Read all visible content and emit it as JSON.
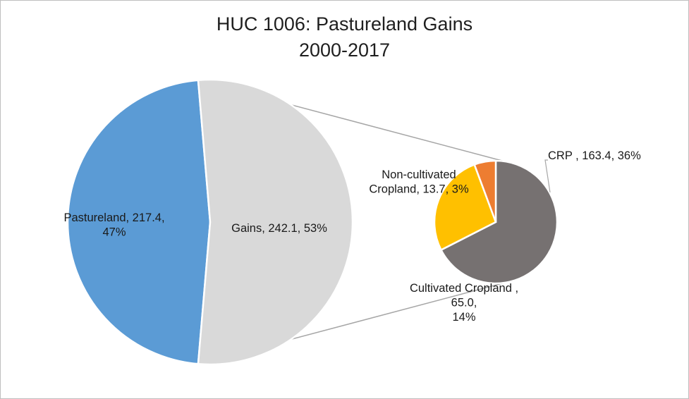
{
  "chart_data": {
    "type": "pie",
    "subtype": "pie-of-pie",
    "title_line1": "HUC 1006: Pastureland Gains",
    "title_line2": "2000-2017",
    "main_pie": {
      "slices": [
        {
          "name": "Pastureland",
          "value": 217.4,
          "percent": "47%",
          "color": "#5b9bd5",
          "label_line1": "Pastureland, 217.4,",
          "label_line2": "47%"
        },
        {
          "name": "Gains",
          "value": 242.1,
          "percent": "53%",
          "color": "#d9d9d9",
          "label_line1": "Gains, 242.1, 53%"
        }
      ]
    },
    "secondary_pie": {
      "slices": [
        {
          "name": "CRP",
          "value": 163.4,
          "percent": "36%",
          "color": "#767171",
          "label_line1": "CRP , 163.4, 36%"
        },
        {
          "name": "Cultivated Cropland",
          "value": 65.0,
          "percent": "14%",
          "color": "#ffc000",
          "label_line1": "Cultivated Cropland ,",
          "label_line2": "65.0,",
          "label_line3": "14%"
        },
        {
          "name": "Non-cultivated Cropland",
          "value": 13.7,
          "percent": "3%",
          "color": "#ed7d31",
          "label_line1": "Non-cultivated",
          "label_line2": "Cropland, 13.7, 3%"
        }
      ]
    },
    "legend": "none"
  }
}
